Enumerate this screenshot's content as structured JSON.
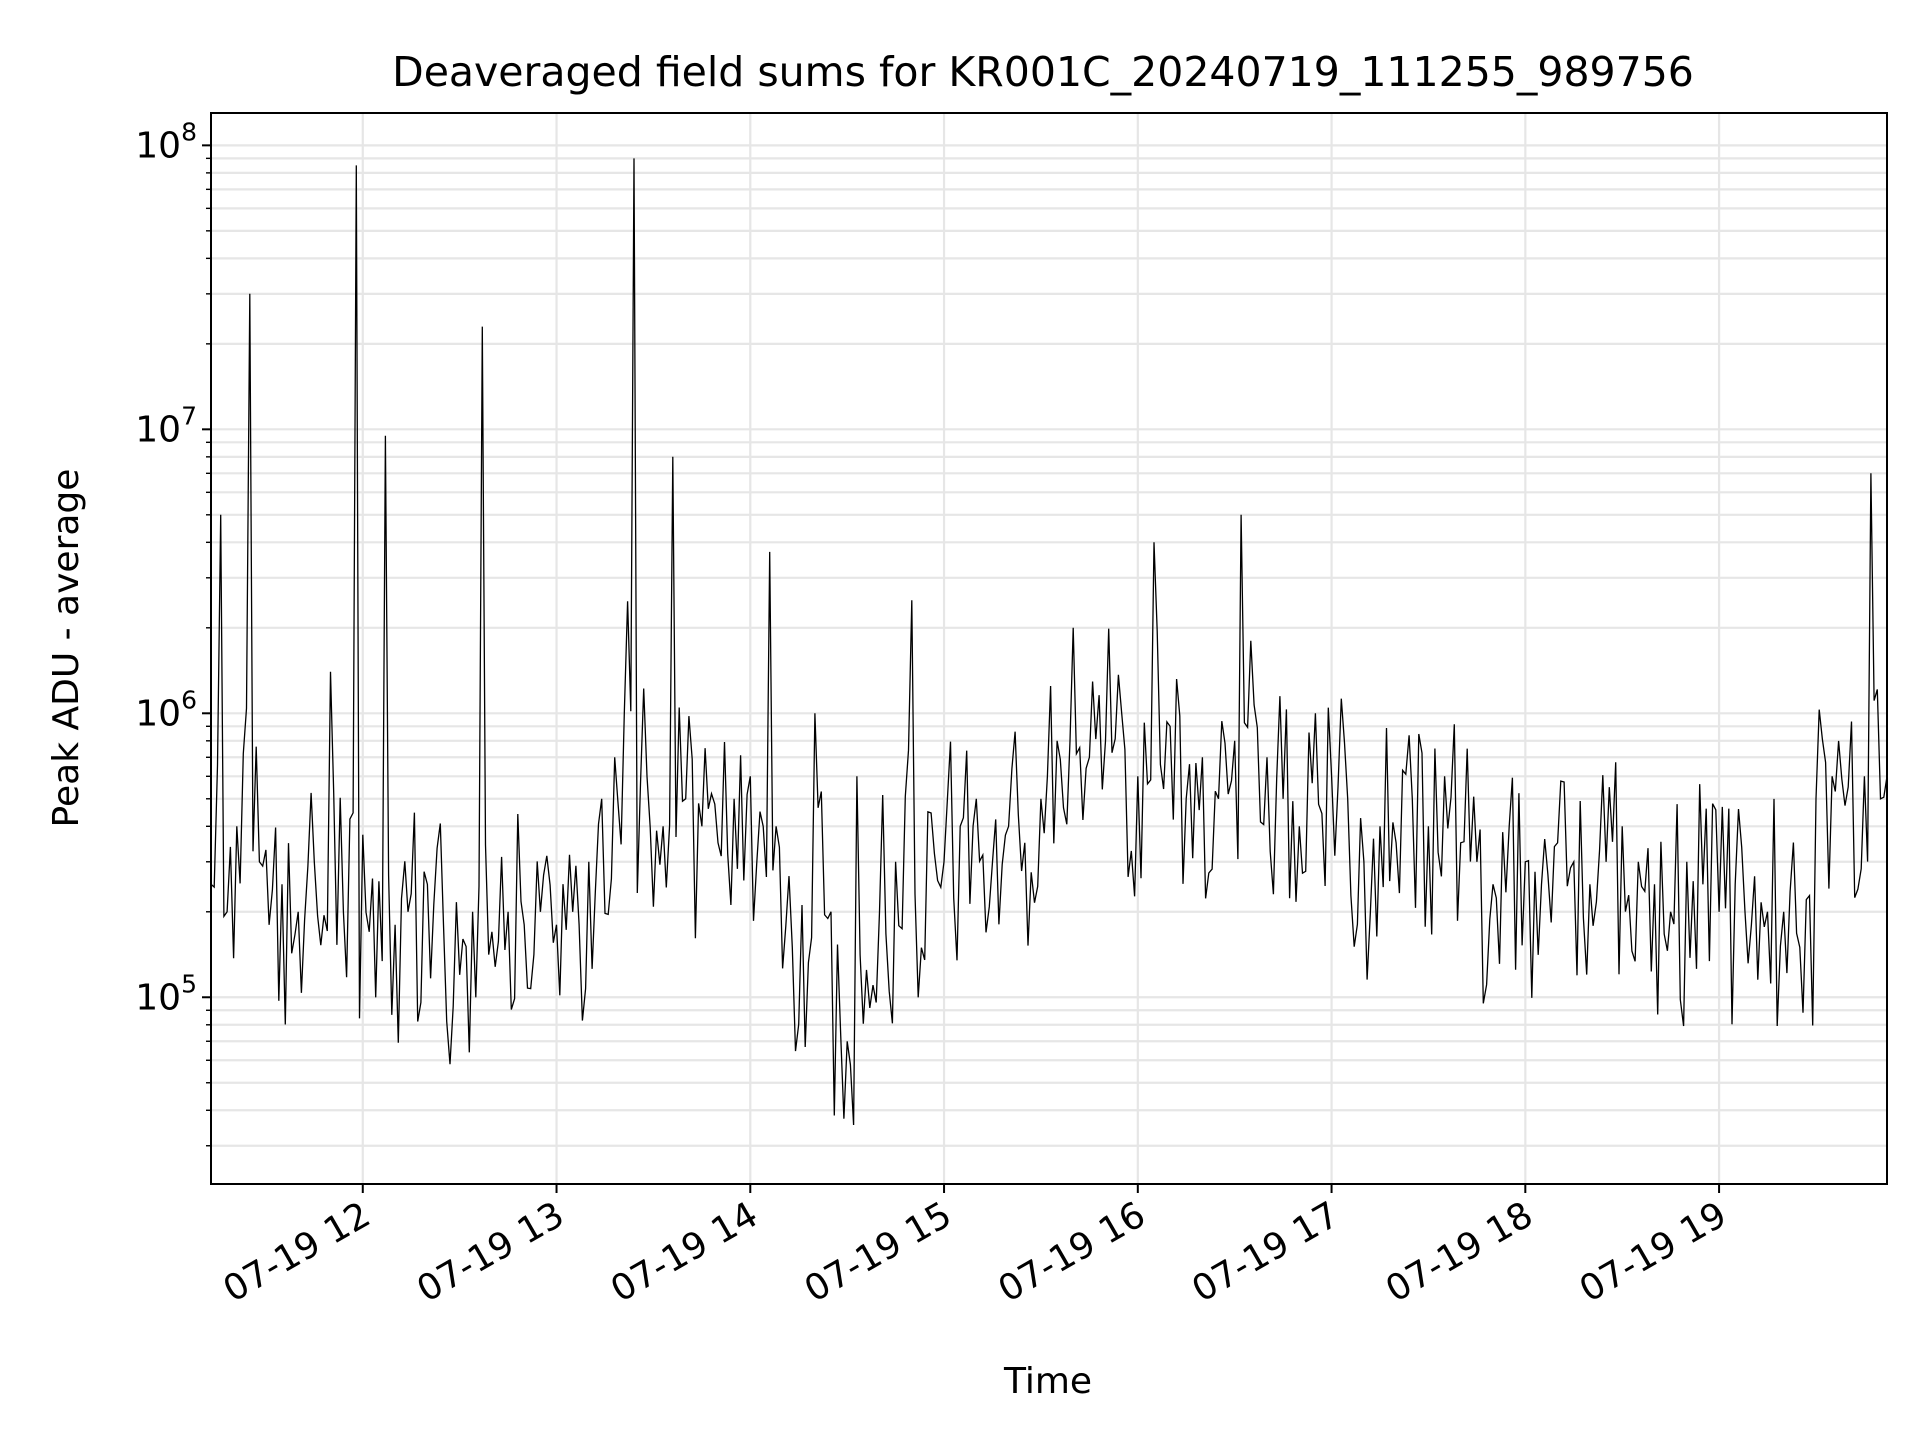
{
  "chart_data": {
    "type": "line",
    "title": "Deaveraged field sums for KR001C_20240719_111255_989756",
    "xlabel": "Time",
    "ylabel": "Peak ADU - average",
    "yscale": "log",
    "ylim": [
      22000,
      130000000
    ],
    "xlim": [
      "2024-07-19T11:13:00",
      "2024-07-19T19:52:00"
    ],
    "grid": true,
    "grid_minor": true,
    "x_ticks": [
      {
        "value": "2024-07-19T12:00",
        "label": "07-19 12"
      },
      {
        "value": "2024-07-19T13:00",
        "label": "07-19 13"
      },
      {
        "value": "2024-07-19T14:00",
        "label": "07-19 14"
      },
      {
        "value": "2024-07-19T15:00",
        "label": "07-19 15"
      },
      {
        "value": "2024-07-19T16:00",
        "label": "07-19 16"
      },
      {
        "value": "2024-07-19T17:00",
        "label": "07-19 17"
      },
      {
        "value": "2024-07-19T18:00",
        "label": "07-19 18"
      },
      {
        "value": "2024-07-19T19:00",
        "label": "07-19 19"
      }
    ],
    "y_ticks": [
      {
        "value": 100000,
        "base": "10",
        "exp": "5"
      },
      {
        "value": 1000000,
        "base": "10",
        "exp": "6"
      },
      {
        "value": 10000000,
        "base": "10",
        "exp": "7"
      },
      {
        "value": 100000000,
        "base": "10",
        "exp": "8"
      }
    ],
    "series": [
      {
        "color": "#000000",
        "x": [
          "2024-07-19T11:13",
          "2024-07-19T11:16",
          "2024-07-19T11:18",
          "2024-07-19T11:21",
          "2024-07-19T11:25",
          "2024-07-19T11:28",
          "2024-07-19T11:31",
          "2024-07-19T11:35",
          "2024-07-19T11:40",
          "2024-07-19T11:45",
          "2024-07-19T11:50",
          "2024-07-19T11:54",
          "2024-07-19T11:58",
          "2024-07-19T12:02",
          "2024-07-19T12:04",
          "2024-07-19T12:07",
          "2024-07-19T12:10",
          "2024-07-19T12:14",
          "2024-07-19T12:20",
          "2024-07-19T12:25",
          "2024-07-19T12:30",
          "2024-07-19T12:34",
          "2024-07-19T12:37",
          "2024-07-19T12:40",
          "2024-07-19T12:45",
          "2024-07-19T12:50",
          "2024-07-19T12:55",
          "2024-07-19T13:00",
          "2024-07-19T13:05",
          "2024-07-19T13:10",
          "2024-07-19T13:14",
          "2024-07-19T13:18",
          "2024-07-19T13:21",
          "2024-07-19T13:24",
          "2024-07-19T13:28",
          "2024-07-19T13:33",
          "2024-07-19T13:36",
          "2024-07-19T13:40",
          "2024-07-19T13:45",
          "2024-07-19T13:50",
          "2024-07-19T13:55",
          "2024-07-19T14:00",
          "2024-07-19T14:04",
          "2024-07-19T14:06",
          "2024-07-19T14:08",
          "2024-07-19T14:13",
          "2024-07-19T14:20",
          "2024-07-19T14:25",
          "2024-07-19T14:30",
          "2024-07-19T14:33",
          "2024-07-19T14:40",
          "2024-07-19T14:45",
          "2024-07-19T14:50",
          "2024-07-19T14:52",
          "2024-07-19T14:55",
          "2024-07-19T15:00",
          "2024-07-19T15:05",
          "2024-07-19T15:10",
          "2024-07-19T15:15",
          "2024-07-19T15:20",
          "2024-07-19T15:25",
          "2024-07-19T15:30",
          "2024-07-19T15:35",
          "2024-07-19T15:40",
          "2024-07-19T15:45",
          "2024-07-19T15:50",
          "2024-07-19T15:55",
          "2024-07-19T16:00",
          "2024-07-19T16:05",
          "2024-07-19T16:10",
          "2024-07-19T16:15",
          "2024-07-19T16:20",
          "2024-07-19T16:25",
          "2024-07-19T16:30",
          "2024-07-19T16:32",
          "2024-07-19T16:35",
          "2024-07-19T16:40",
          "2024-07-19T16:45",
          "2024-07-19T16:50",
          "2024-07-19T16:55",
          "2024-07-19T17:00",
          "2024-07-19T17:05",
          "2024-07-19T17:10",
          "2024-07-19T17:15",
          "2024-07-19T17:20",
          "2024-07-19T17:25",
          "2024-07-19T17:30",
          "2024-07-19T17:35",
          "2024-07-19T17:40",
          "2024-07-19T17:45",
          "2024-07-19T17:50",
          "2024-07-19T17:55",
          "2024-07-19T18:00",
          "2024-07-19T18:05",
          "2024-07-19T18:10",
          "2024-07-19T18:15",
          "2024-07-19T18:20",
          "2024-07-19T18:25",
          "2024-07-19T18:30",
          "2024-07-19T18:35",
          "2024-07-19T18:40",
          "2024-07-19T18:45",
          "2024-07-19T18:50",
          "2024-07-19T18:55",
          "2024-07-19T19:00",
          "2024-07-19T19:05",
          "2024-07-19T19:10",
          "2024-07-19T19:15",
          "2024-07-19T19:20",
          "2024-07-19T19:25",
          "2024-07-19T19:30",
          "2024-07-19T19:35",
          "2024-07-19T19:40",
          "2024-07-19T19:45",
          "2024-07-19T19:47",
          "2024-07-19T19:50",
          "2024-07-19T19:52"
        ],
        "y": [
          250000,
          5000000,
          200000,
          400000,
          30000000,
          300000,
          180000,
          250000,
          200000,
          300000,
          1400000,
          200000,
          85000000,
          170000,
          100000,
          9500000,
          180000,
          200000,
          250000,
          180000,
          120000,
          200000,
          23000000,
          170000,
          200000,
          180000,
          200000,
          180000,
          200000,
          300000,
          500000,
          700000,
          1000000,
          90000000,
          600000,
          400000,
          8000000,
          500000,
          400000,
          350000,
          500000,
          600000,
          400000,
          3700000,
          400000,
          150000,
          1000000,
          200000,
          70000,
          600000,
          200000,
          300000,
          2500000,
          100000,
          450000,
          300000,
          400000,
          500000,
          300000,
          400000,
          350000,
          500000,
          800000,
          2000000,
          700000,
          800000,
          1000000,
          600000,
          4000000,
          900000,
          500000,
          700000,
          500000,
          800000,
          5000000,
          1800000,
          700000,
          500000,
          400000,
          1000000,
          600000,
          500000,
          300000,
          400000,
          350000,
          500000,
          400000,
          600000,
          350000,
          300000,
          250000,
          400000,
          300000,
          250000,
          350000,
          300000,
          250000,
          300000,
          400000,
          300000,
          250000,
          200000,
          300000,
          250000,
          200000,
          250000,
          180000,
          200000,
          200000,
          150000,
          500000,
          600000,
          550000,
          600000,
          7000000,
          500000,
          600000
        ]
      }
    ]
  }
}
